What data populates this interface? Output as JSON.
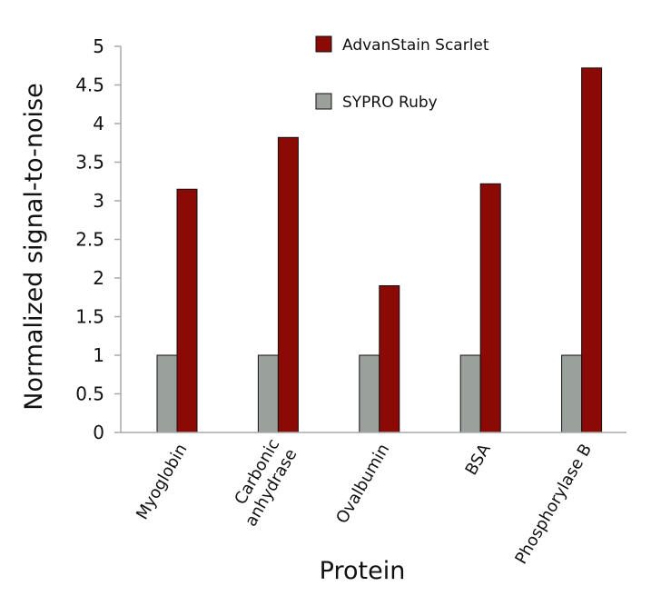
{
  "chart_data": {
    "type": "bar",
    "xlabel": "Protein",
    "ylabel": "Normalized signal-to-noise",
    "ylim": [
      0,
      5
    ],
    "yticks": [
      "0",
      "0.5",
      "1",
      "1.5",
      "2",
      "2.5",
      "3",
      "3.5",
      "4",
      "4.5",
      "5"
    ],
    "categories": [
      [
        "Myoglobin"
      ],
      [
        "Carbonic",
        "anhydrase"
      ],
      [
        "Ovalbumin"
      ],
      [
        "BSA"
      ],
      [
        "Phosphorylase B"
      ]
    ],
    "series": [
      {
        "name": "SYPRO Ruby",
        "color": "#9aa09c",
        "values": [
          1,
          1,
          1,
          1,
          1
        ]
      },
      {
        "name": "AdvanStain Scarlet",
        "color": "#8b0a05",
        "values": [
          3.15,
          3.82,
          1.9,
          3.22,
          4.72
        ]
      }
    ],
    "legend": {
      "position": "top-right",
      "order": [
        "AdvanStain Scarlet",
        "SYPRO Ruby"
      ]
    },
    "grid": false
  }
}
